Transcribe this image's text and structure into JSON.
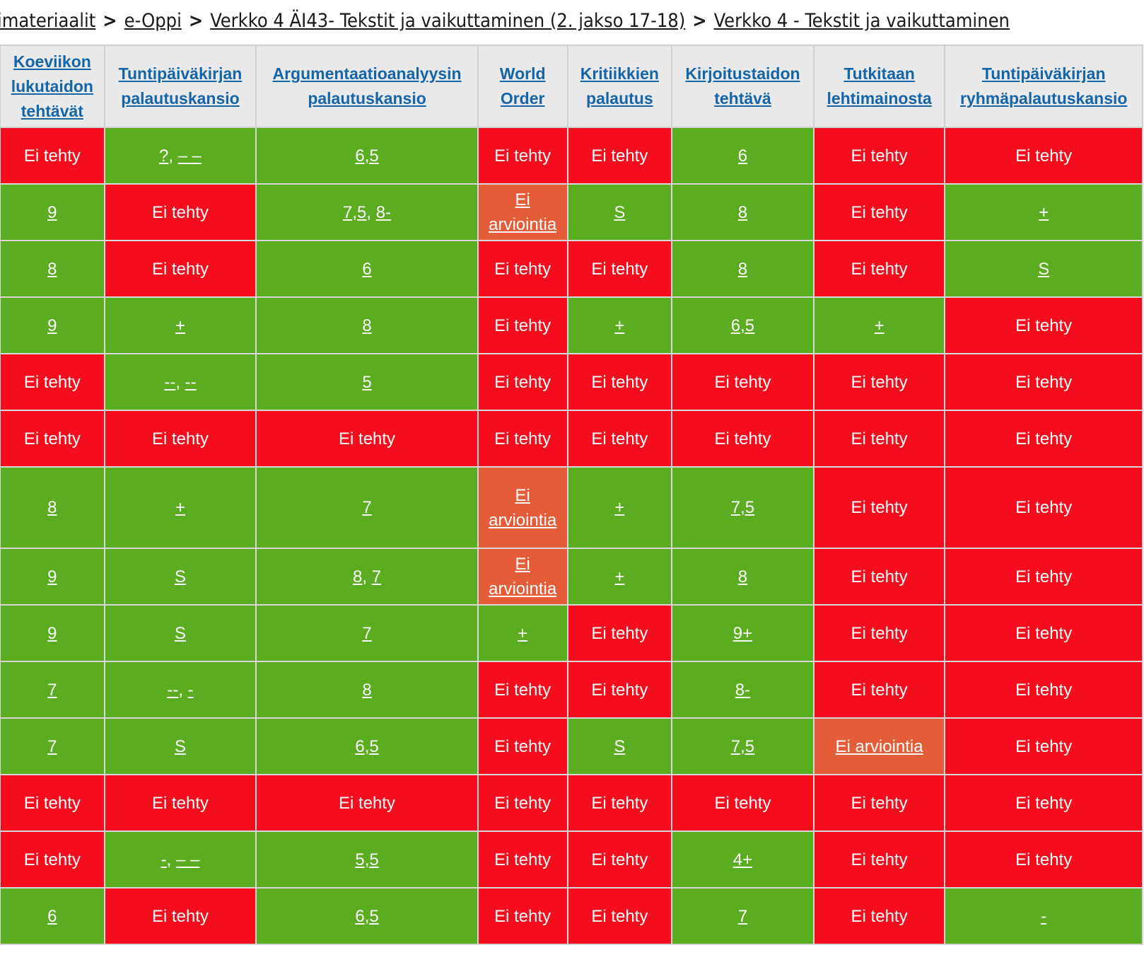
{
  "breadcrumb": [
    "imateriaalit",
    "e-Oppi",
    "Verkko 4 ÄI43- Tekstit ja vaikuttaminen (2. jakso 17-18)",
    "Verkko 4 - Tekstit ja vaikuttaminen"
  ],
  "breadcrumb_separator": ">",
  "colors": {
    "not_done": "#f50d1e",
    "graded": "#5aac20",
    "not_assessed": "#e55d38",
    "header_link": "#1565a8",
    "header_bg": "#e9e9e9"
  },
  "table": {
    "columns": [
      [
        "Koeviikon",
        "lukutaidon",
        "tehtävät"
      ],
      [
        "Tuntipäiväkirjan",
        "palautuskansio"
      ],
      [
        "Argumentaatioanalyysin",
        "palautuskansio"
      ],
      [
        "World",
        "Order"
      ],
      [
        "Kritiikkien",
        "palautus"
      ],
      [
        "Kirjoitustaidon",
        "tehtävä"
      ],
      [
        "Tutkitaan",
        "lehtimainosta"
      ],
      [
        "Tuntipäiväkirjan",
        "ryhmäpalautuskansio"
      ]
    ],
    "rows": [
      [
        {
          "status": "not_done",
          "text": "Ei tehty"
        },
        {
          "status": "graded",
          "links": [
            "?",
            "– –"
          ]
        },
        {
          "status": "graded",
          "links": [
            "6,5"
          ]
        },
        {
          "status": "not_done",
          "text": "Ei tehty"
        },
        {
          "status": "not_done",
          "text": "Ei tehty"
        },
        {
          "status": "graded",
          "links": [
            "6"
          ]
        },
        {
          "status": "not_done",
          "text": "Ei tehty"
        },
        {
          "status": "not_done",
          "text": "Ei tehty"
        }
      ],
      [
        {
          "status": "graded",
          "links": [
            "9"
          ]
        },
        {
          "status": "not_done",
          "text": "Ei tehty"
        },
        {
          "status": "graded",
          "links": [
            "7,5",
            "8-"
          ]
        },
        {
          "status": "not_assessed",
          "links": [
            "Ei arviointia"
          ]
        },
        {
          "status": "graded",
          "links": [
            "S"
          ]
        },
        {
          "status": "graded",
          "links": [
            "8"
          ]
        },
        {
          "status": "not_done",
          "text": "Ei tehty"
        },
        {
          "status": "graded",
          "links": [
            "+"
          ]
        }
      ],
      [
        {
          "status": "graded",
          "links": [
            "8"
          ]
        },
        {
          "status": "not_done",
          "text": "Ei tehty"
        },
        {
          "status": "graded",
          "links": [
            "6"
          ]
        },
        {
          "status": "not_done",
          "text": "Ei tehty"
        },
        {
          "status": "not_done",
          "text": "Ei tehty"
        },
        {
          "status": "graded",
          "links": [
            "8"
          ]
        },
        {
          "status": "not_done",
          "text": "Ei tehty"
        },
        {
          "status": "graded",
          "links": [
            "S"
          ]
        }
      ],
      [
        {
          "status": "graded",
          "links": [
            "9"
          ]
        },
        {
          "status": "graded",
          "links": [
            "+"
          ]
        },
        {
          "status": "graded",
          "links": [
            "8"
          ]
        },
        {
          "status": "not_done",
          "text": "Ei tehty"
        },
        {
          "status": "graded",
          "links": [
            "+"
          ]
        },
        {
          "status": "graded",
          "links": [
            "6,5"
          ]
        },
        {
          "status": "graded",
          "links": [
            "+"
          ]
        },
        {
          "status": "not_done",
          "text": "Ei tehty"
        }
      ],
      [
        {
          "status": "not_done",
          "text": "Ei tehty"
        },
        {
          "status": "graded",
          "links": [
            "--",
            "--"
          ]
        },
        {
          "status": "graded",
          "links": [
            "5"
          ]
        },
        {
          "status": "not_done",
          "text": "Ei tehty"
        },
        {
          "status": "not_done",
          "text": "Ei tehty"
        },
        {
          "status": "not_done",
          "text": "Ei tehty"
        },
        {
          "status": "not_done",
          "text": "Ei tehty"
        },
        {
          "status": "not_done",
          "text": "Ei tehty"
        }
      ],
      [
        {
          "status": "not_done",
          "text": "Ei tehty"
        },
        {
          "status": "not_done",
          "text": "Ei tehty"
        },
        {
          "status": "not_done",
          "text": "Ei tehty"
        },
        {
          "status": "not_done",
          "text": "Ei tehty"
        },
        {
          "status": "not_done",
          "text": "Ei tehty"
        },
        {
          "status": "not_done",
          "text": "Ei tehty"
        },
        {
          "status": "not_done",
          "text": "Ei tehty"
        },
        {
          "status": "not_done",
          "text": "Ei tehty"
        }
      ],
      [
        {
          "status": "graded",
          "links": [
            "8"
          ]
        },
        {
          "status": "graded",
          "links": [
            "+"
          ]
        },
        {
          "status": "graded",
          "links": [
            "7"
          ]
        },
        {
          "status": "not_assessed",
          "links": [
            "Ei arviointia"
          ]
        },
        {
          "status": "graded",
          "links": [
            "+"
          ]
        },
        {
          "status": "graded",
          "links": [
            "7,5"
          ]
        },
        {
          "status": "not_done",
          "text": "Ei tehty"
        },
        {
          "status": "not_done",
          "text": "Ei tehty"
        }
      ],
      [
        {
          "status": "graded",
          "links": [
            "9"
          ]
        },
        {
          "status": "graded",
          "links": [
            "S"
          ]
        },
        {
          "status": "graded",
          "links": [
            "8",
            "7"
          ]
        },
        {
          "status": "not_assessed",
          "links": [
            "Ei arviointia"
          ]
        },
        {
          "status": "graded",
          "links": [
            "+"
          ]
        },
        {
          "status": "graded",
          "links": [
            "8"
          ]
        },
        {
          "status": "not_done",
          "text": "Ei tehty"
        },
        {
          "status": "not_done",
          "text": "Ei tehty"
        }
      ],
      [
        {
          "status": "graded",
          "links": [
            "9"
          ]
        },
        {
          "status": "graded",
          "links": [
            "S"
          ]
        },
        {
          "status": "graded",
          "links": [
            "7"
          ]
        },
        {
          "status": "graded",
          "links": [
            "+"
          ]
        },
        {
          "status": "not_done",
          "text": "Ei tehty"
        },
        {
          "status": "graded",
          "links": [
            "9+"
          ]
        },
        {
          "status": "not_done",
          "text": "Ei tehty"
        },
        {
          "status": "not_done",
          "text": "Ei tehty"
        }
      ],
      [
        {
          "status": "graded",
          "links": [
            "7"
          ]
        },
        {
          "status": "graded",
          "links": [
            "--",
            "-"
          ]
        },
        {
          "status": "graded",
          "links": [
            "8"
          ]
        },
        {
          "status": "not_done",
          "text": "Ei tehty"
        },
        {
          "status": "not_done",
          "text": "Ei tehty"
        },
        {
          "status": "graded",
          "links": [
            "8-"
          ]
        },
        {
          "status": "not_done",
          "text": "Ei tehty"
        },
        {
          "status": "not_done",
          "text": "Ei tehty"
        }
      ],
      [
        {
          "status": "graded",
          "links": [
            "7"
          ]
        },
        {
          "status": "graded",
          "links": [
            "S"
          ]
        },
        {
          "status": "graded",
          "links": [
            "6,5"
          ]
        },
        {
          "status": "not_done",
          "text": "Ei tehty"
        },
        {
          "status": "graded",
          "links": [
            "S"
          ]
        },
        {
          "status": "graded",
          "links": [
            "7,5"
          ]
        },
        {
          "status": "not_assessed",
          "links": [
            "Ei arviointia"
          ]
        },
        {
          "status": "not_done",
          "text": "Ei tehty"
        }
      ],
      [
        {
          "status": "not_done",
          "text": "Ei tehty"
        },
        {
          "status": "not_done",
          "text": "Ei tehty"
        },
        {
          "status": "not_done",
          "text": "Ei tehty"
        },
        {
          "status": "not_done",
          "text": "Ei tehty"
        },
        {
          "status": "not_done",
          "text": "Ei tehty"
        },
        {
          "status": "not_done",
          "text": "Ei tehty"
        },
        {
          "status": "not_done",
          "text": "Ei tehty"
        },
        {
          "status": "not_done",
          "text": "Ei tehty"
        }
      ],
      [
        {
          "status": "not_done",
          "text": "Ei tehty"
        },
        {
          "status": "graded",
          "links": [
            "-",
            "– –"
          ]
        },
        {
          "status": "graded",
          "links": [
            "5,5"
          ]
        },
        {
          "status": "not_done",
          "text": "Ei tehty"
        },
        {
          "status": "not_done",
          "text": "Ei tehty"
        },
        {
          "status": "graded",
          "links": [
            "4+"
          ]
        },
        {
          "status": "not_done",
          "text": "Ei tehty"
        },
        {
          "status": "not_done",
          "text": "Ei tehty"
        }
      ],
      [
        {
          "status": "graded",
          "links": [
            "6"
          ]
        },
        {
          "status": "not_done",
          "text": "Ei tehty"
        },
        {
          "status": "graded",
          "links": [
            "6,5"
          ]
        },
        {
          "status": "not_done",
          "text": "Ei tehty"
        },
        {
          "status": "not_done",
          "text": "Ei tehty"
        },
        {
          "status": "graded",
          "links": [
            "7"
          ]
        },
        {
          "status": "not_done",
          "text": "Ei tehty"
        },
        {
          "status": "graded",
          "links": [
            "-"
          ]
        }
      ]
    ]
  }
}
